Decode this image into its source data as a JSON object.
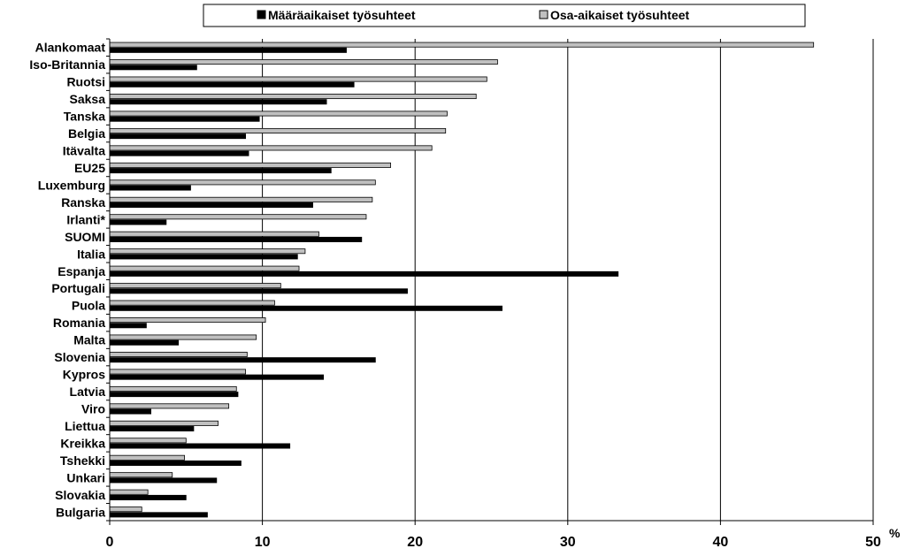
{
  "chart_data": {
    "type": "bar",
    "orientation": "horizontal",
    "categories": [
      "Alankomaat",
      "Iso-Britannia",
      "Ruotsi",
      "Saksa",
      "Tanska",
      "Belgia",
      "Itävalta",
      "EU25",
      "Luxemburg",
      "Ranska",
      "Irlanti*",
      "SUOMI",
      "Italia",
      "Espanja",
      "Portugali",
      "Puola",
      "Romania",
      "Malta",
      "Slovenia",
      "Kypros",
      "Latvia",
      "Viro",
      "Liettua",
      "Kreikka",
      "Tshekki",
      "Unkari",
      "Slovakia",
      "Bulgaria"
    ],
    "series": [
      {
        "name": "Määräaikaiset työsuhteet",
        "color": "#000000",
        "values": [
          15.5,
          5.7,
          16.0,
          14.2,
          9.8,
          8.9,
          9.1,
          14.5,
          5.3,
          13.3,
          3.7,
          16.5,
          12.3,
          33.3,
          19.5,
          25.7,
          2.4,
          4.5,
          17.4,
          14.0,
          8.4,
          2.7,
          5.5,
          11.8,
          8.6,
          7.0,
          5.0,
          6.4
        ]
      },
      {
        "name": "Osa-aikaiset työsuhteet",
        "color": "#c0c0c0",
        "values": [
          46.1,
          25.4,
          24.7,
          24.0,
          22.1,
          22.0,
          21.1,
          18.4,
          17.4,
          17.2,
          16.8,
          13.7,
          12.8,
          12.4,
          11.2,
          10.8,
          10.2,
          9.6,
          9.0,
          8.9,
          8.3,
          7.8,
          7.1,
          5.0,
          4.9,
          4.1,
          2.5,
          2.1
        ]
      }
    ],
    "xlim": [
      0,
      50
    ],
    "xticks": [
      "0",
      "10",
      "20",
      "30",
      "40",
      "50"
    ],
    "xunit": "%",
    "grid": "vertical",
    "legend": "top"
  }
}
